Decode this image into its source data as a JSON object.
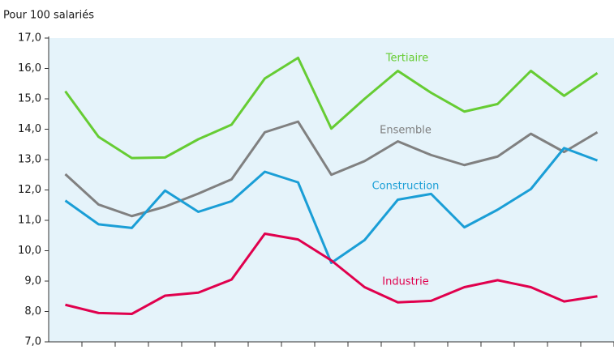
{
  "chart_data": {
    "type": "line",
    "subtitle": "Pour 100 salariés",
    "categories": [
      null,
      null,
      null,
      null,
      null,
      null,
      null,
      null,
      null,
      null,
      null,
      null,
      null,
      null,
      null,
      null,
      null
    ],
    "series": [
      {
        "name": "Tertiaire",
        "color": "#66cc33",
        "values": [
          15.25,
          13.75,
          13.05,
          13.07,
          13.67,
          14.15,
          15.67,
          16.35,
          14.02,
          15.0,
          15.92,
          15.2,
          14.58,
          14.83,
          15.92,
          15.1,
          15.85
        ]
      },
      {
        "name": "Ensemble",
        "color": "#808080",
        "values": [
          12.52,
          11.52,
          11.14,
          11.45,
          11.88,
          12.35,
          13.9,
          14.25,
          12.5,
          12.95,
          13.6,
          13.15,
          12.82,
          13.1,
          13.85,
          13.25,
          13.9
        ]
      },
      {
        "name": "Construction",
        "color": "#1a9ed6",
        "values": [
          11.65,
          10.87,
          10.75,
          11.98,
          11.28,
          11.63,
          12.6,
          12.25,
          9.6,
          10.35,
          11.68,
          11.87,
          10.77,
          11.35,
          12.03,
          13.38,
          12.97
        ]
      },
      {
        "name": "Industrie",
        "color": "#e0004d",
        "values": [
          8.22,
          7.95,
          7.92,
          8.52,
          8.62,
          9.05,
          10.56,
          10.37,
          9.68,
          8.8,
          8.3,
          8.35,
          8.8,
          9.03,
          8.8,
          8.33,
          8.5
        ]
      }
    ],
    "ylim": [
      7,
      17
    ],
    "yticks": [
      {
        "value": 7,
        "label": "7,0"
      },
      {
        "value": 8,
        "label": "8,0"
      },
      {
        "value": 9,
        "label": "9,0"
      },
      {
        "value": 10,
        "label": "10,0"
      },
      {
        "value": 11,
        "label": "11,0"
      },
      {
        "value": 12,
        "label": "12,0"
      },
      {
        "value": 13,
        "label": "13,0"
      },
      {
        "value": 14,
        "label": "14,0"
      },
      {
        "value": 15,
        "label": "15,0"
      },
      {
        "value": 16,
        "label": "16,0"
      },
      {
        "value": 17,
        "label": "17,0"
      }
    ],
    "grid": false
  }
}
